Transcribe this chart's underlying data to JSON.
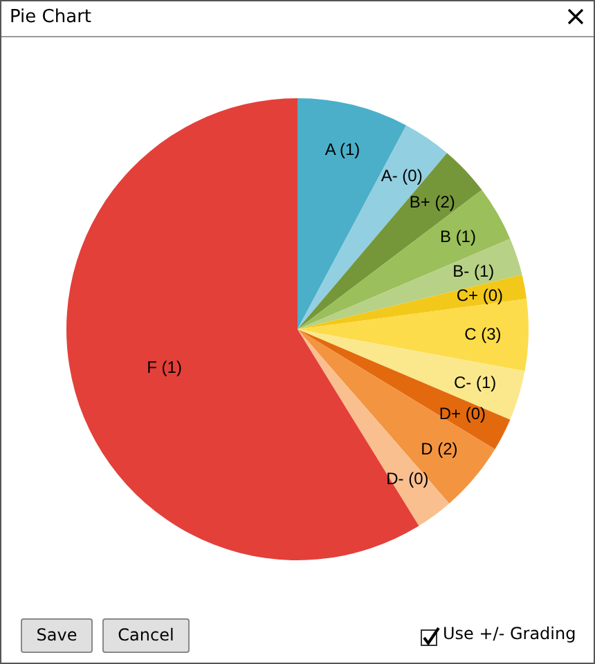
{
  "chart_data": {
    "type": "pie",
    "title": "Pie Chart",
    "categories": [
      "A (1)",
      "A- (0)",
      "B+ (2)",
      "B (1)",
      "B- (1)",
      "C+ (0)",
      "C (3)",
      "C- (1)",
      "D+ (0)",
      "D (2)",
      "D- (0)",
      "F (1)"
    ],
    "values": [
      7.8,
      3.4,
      3.5,
      3.9,
      2.6,
      1.7,
      5.0,
      3.5,
      2.3,
      4.9,
      2.6,
      58.8
    ],
    "colors": [
      "#4bafc9",
      "#92cfe0",
      "#76963a",
      "#9bbf5a",
      "#b7d186",
      "#f2c81a",
      "#fcdc4a",
      "#fbe88c",
      "#e3690f",
      "#f39441",
      "#f9bf8f",
      "#e3403a"
    ],
    "annotations": [
      "Save",
      "Cancel",
      "Use +/- Grading"
    ],
    "legend": false
  }
}
